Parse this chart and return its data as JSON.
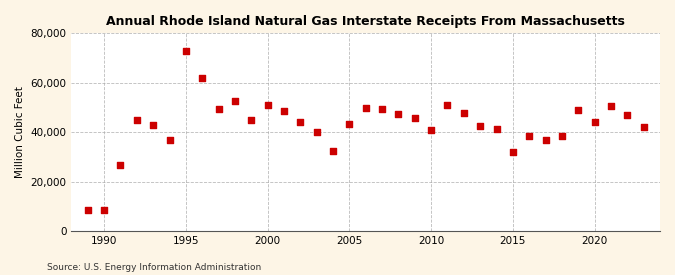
{
  "years": [
    1989,
    1990,
    1991,
    1992,
    1993,
    1994,
    1995,
    1996,
    1997,
    1998,
    1999,
    2000,
    2001,
    2002,
    2003,
    2004,
    2005,
    2006,
    2007,
    2008,
    2009,
    2010,
    2011,
    2012,
    2013,
    2014,
    2015,
    2016,
    2017,
    2018,
    2019,
    2020,
    2021,
    2022,
    2023
  ],
  "values": [
    8500,
    8800,
    27000,
    45000,
    43000,
    37000,
    73000,
    62000,
    49500,
    52500,
    45000,
    51000,
    48500,
    44000,
    40000,
    32500,
    43500,
    50000,
    49500,
    47500,
    46000,
    41000,
    51000,
    48000,
    42500,
    41500,
    32000,
    38500,
    37000,
    38500,
    49000,
    44000,
    50500,
    47000,
    42000
  ],
  "title": "Annual Rhode Island Natural Gas Interstate Receipts From Massachusetts",
  "ylabel": "Million Cubic Feet",
  "source": "Source: U.S. Energy Information Administration",
  "dot_color": "#cc0000",
  "bg_color": "#fdf5e6",
  "plot_bg_color": "#ffffff",
  "grid_color": "#aaaaaa",
  "ylim": [
    0,
    80000
  ],
  "yticks": [
    0,
    20000,
    40000,
    60000,
    80000
  ],
  "xlim": [
    1988,
    2024
  ],
  "xticks": [
    1990,
    1995,
    2000,
    2005,
    2010,
    2015,
    2020
  ]
}
